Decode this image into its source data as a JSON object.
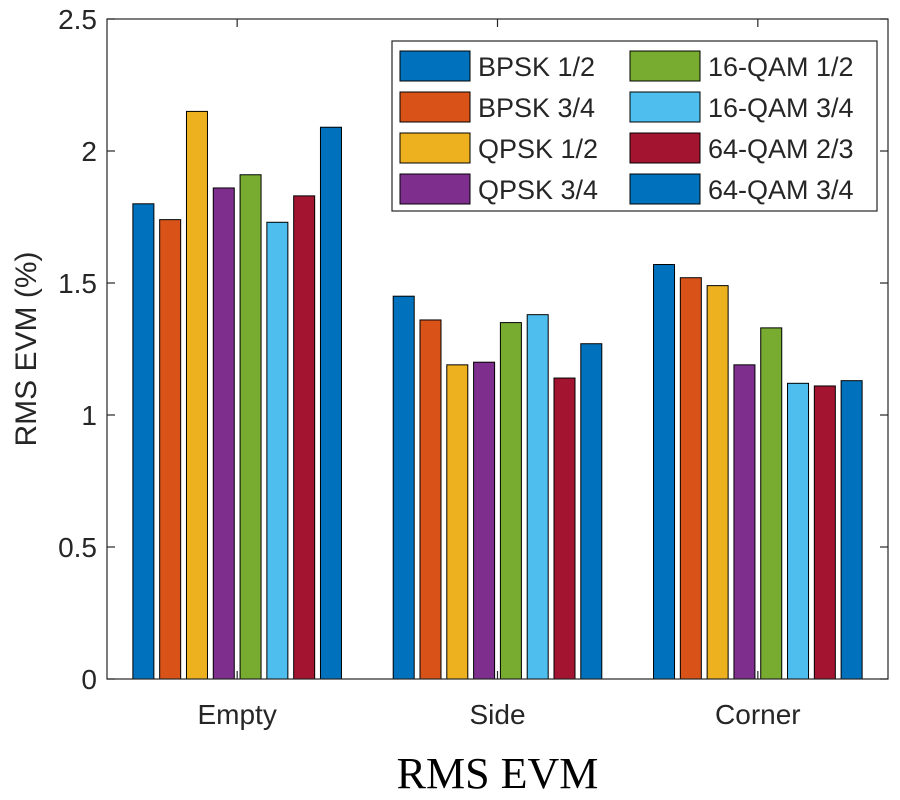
{
  "chart_data": {
    "type": "bar",
    "title": "",
    "xlabel": "RMS EVM",
    "ylabel": "RMS EVM (%)",
    "ylim": [
      0,
      2.5
    ],
    "yticks": [
      0,
      0.5,
      1,
      1.5,
      2,
      2.5
    ],
    "ytick_labels": [
      "0",
      "0.5",
      "1",
      "1.5",
      "2",
      "2.5"
    ],
    "categories": [
      "Empty",
      "Side",
      "Corner"
    ],
    "legend_position": "top-right",
    "series": [
      {
        "name": "BPSK 1/2",
        "color": "#0072BD",
        "values": [
          1.8,
          1.45,
          1.57
        ]
      },
      {
        "name": "BPSK 3/4",
        "color": "#D95319",
        "values": [
          1.74,
          1.36,
          1.52
        ]
      },
      {
        "name": "QPSK 1/2",
        "color": "#EDB120",
        "values": [
          2.15,
          1.19,
          1.49
        ]
      },
      {
        "name": "QPSK 3/4",
        "color": "#7E2F8E",
        "values": [
          1.86,
          1.2,
          1.19
        ]
      },
      {
        "name": "16-QAM 1/2",
        "color": "#77AC30",
        "values": [
          1.91,
          1.35,
          1.33
        ]
      },
      {
        "name": "16-QAM 3/4",
        "color": "#4DBEEE",
        "values": [
          1.73,
          1.38,
          1.12
        ]
      },
      {
        "name": "64-QAM 2/3",
        "color": "#A2142F",
        "values": [
          1.83,
          1.14,
          1.11
        ]
      },
      {
        "name": "64-QAM 3/4",
        "color": "#0072BD",
        "values": [
          2.09,
          1.27,
          1.13
        ]
      }
    ]
  }
}
